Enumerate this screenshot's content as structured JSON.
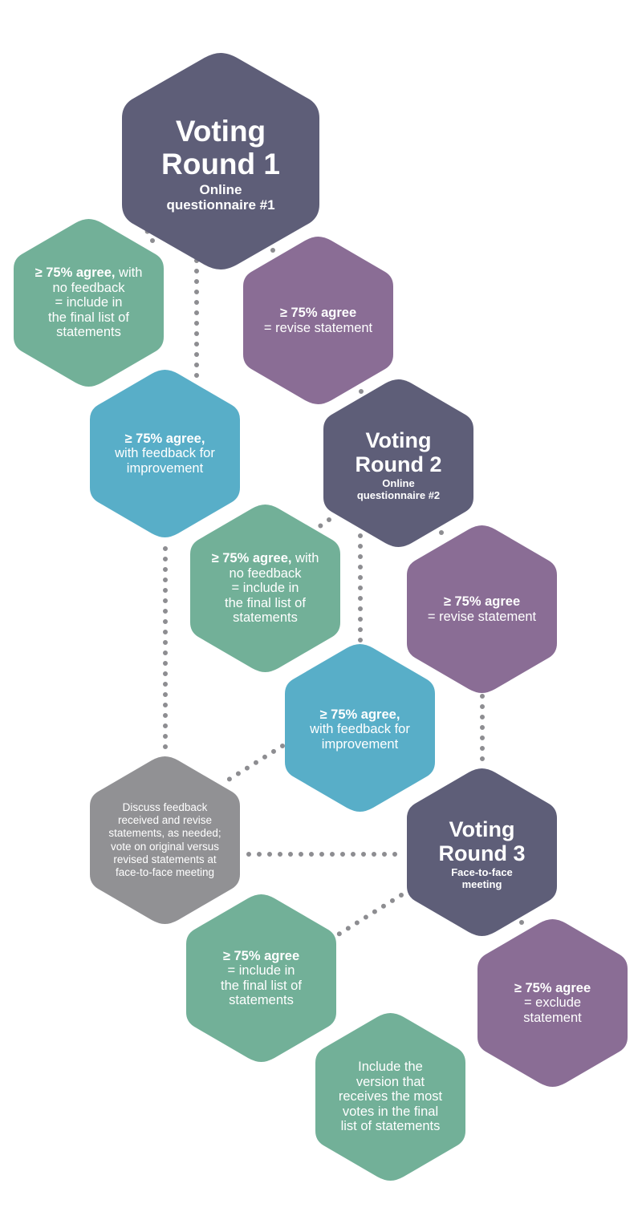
{
  "colors": {
    "round": "#5e5e78",
    "green": "#72b098",
    "purple": "#8a6d95",
    "blue": "#58aec8",
    "gray": "#919194",
    "dots": "#8d8d91"
  },
  "nodes": {
    "round1": {
      "title_line1": "Voting",
      "title_line2": "Round 1",
      "sub_line1": "Online",
      "sub_line2": "questionnaire #1"
    },
    "r1_include": {
      "bold": "≥ 75% agree,",
      "rest1": " with",
      "line2": "no feedback",
      "line3": "= include in",
      "line4": "the final list of",
      "line5": "statements"
    },
    "r1_revise": {
      "bold": "≥ 75% agree",
      "line2": "= revise statement"
    },
    "r1_feedback": {
      "bold": "≥ 75% agree,",
      "line2": "with feedback for",
      "line3": "improvement"
    },
    "round2": {
      "title_line1": "Voting",
      "title_line2": "Round 2",
      "sub_line1": "Online",
      "sub_line2": "questionnaire #2"
    },
    "r2_include": {
      "bold": "≥ 75% agree,",
      "rest1": " with",
      "line2": "no feedback",
      "line3": "= include in",
      "line4": "the final list of",
      "line5": "statements"
    },
    "r2_revise": {
      "bold": "≥ 75% agree",
      "line2": "= revise statement"
    },
    "r2_feedback": {
      "bold": "≥ 75% agree,",
      "line2": "with feedback for",
      "line3": "improvement"
    },
    "discuss": {
      "line1": "Discuss feedback",
      "line2": "received and revise",
      "line3": "statements, as needed;",
      "line4": "vote on original versus",
      "line5": "revised statements at",
      "line6": "face-to-face meeting"
    },
    "round3": {
      "title_line1": "Voting",
      "title_line2": "Round 3",
      "sub_line1": "Face-to-face",
      "sub_line2": "meeting"
    },
    "r3_include": {
      "bold": "≥ 75% agree",
      "line2": "= include in",
      "line3": "the final list of",
      "line4": "statements"
    },
    "r3_exclude": {
      "bold": "≥ 75% agree",
      "line2": "= exclude",
      "line3": "statement"
    },
    "final_version": {
      "line1": "Include the",
      "line2": "version that",
      "line3": "receives the most",
      "line4": "votes in the final",
      "line5": "list of statements"
    }
  }
}
